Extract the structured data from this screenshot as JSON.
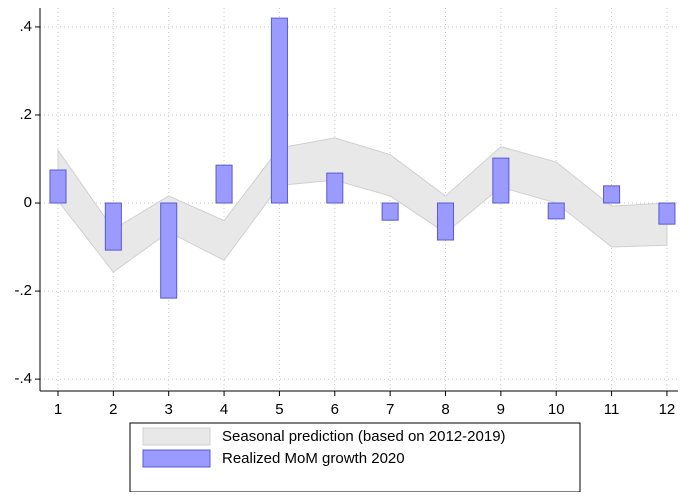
{
  "chart_data": {
    "type": "bar-band",
    "x": [
      1,
      2,
      3,
      4,
      5,
      6,
      7,
      8,
      9,
      10,
      11,
      12
    ],
    "series": [
      {
        "name": "Seasonal prediction (based on 2012-2019)",
        "type": "band",
        "color": "#e8e8e8",
        "stroke": "#d0d0d0",
        "upper": [
          0.12,
          -0.06,
          0.016,
          -0.04,
          0.125,
          0.148,
          0.11,
          0.016,
          0.128,
          0.093,
          -0.007,
          0.0
        ],
        "lower": [
          0.005,
          -0.157,
          -0.066,
          -0.13,
          0.04,
          0.052,
          0.016,
          -0.068,
          0.036,
          0.0,
          -0.1,
          -0.096
        ]
      },
      {
        "name": "Realized MoM growth 2020",
        "type": "bar",
        "color": "#9a9aff",
        "stroke": "#5a5ad0",
        "values": [
          0.075,
          -0.107,
          -0.216,
          0.086,
          0.42,
          0.068,
          -0.039,
          -0.084,
          0.102,
          -0.036,
          0.039,
          -0.048
        ]
      }
    ],
    "xlim": [
      0.675,
      12.2
    ],
    "ylim": [
      -0.427,
      0.443
    ],
    "xticks": [
      1,
      2,
      3,
      4,
      5,
      6,
      7,
      8,
      9,
      10,
      11,
      12
    ],
    "yticks": [
      {
        "value": -0.4,
        "label": "-.4"
      },
      {
        "value": -0.2,
        "label": "-.2"
      },
      0,
      {
        "value": 0.2,
        "label": ".2"
      },
      {
        "value": 0.4,
        "label": ".4"
      }
    ],
    "grid": true,
    "legend": "bottom"
  }
}
